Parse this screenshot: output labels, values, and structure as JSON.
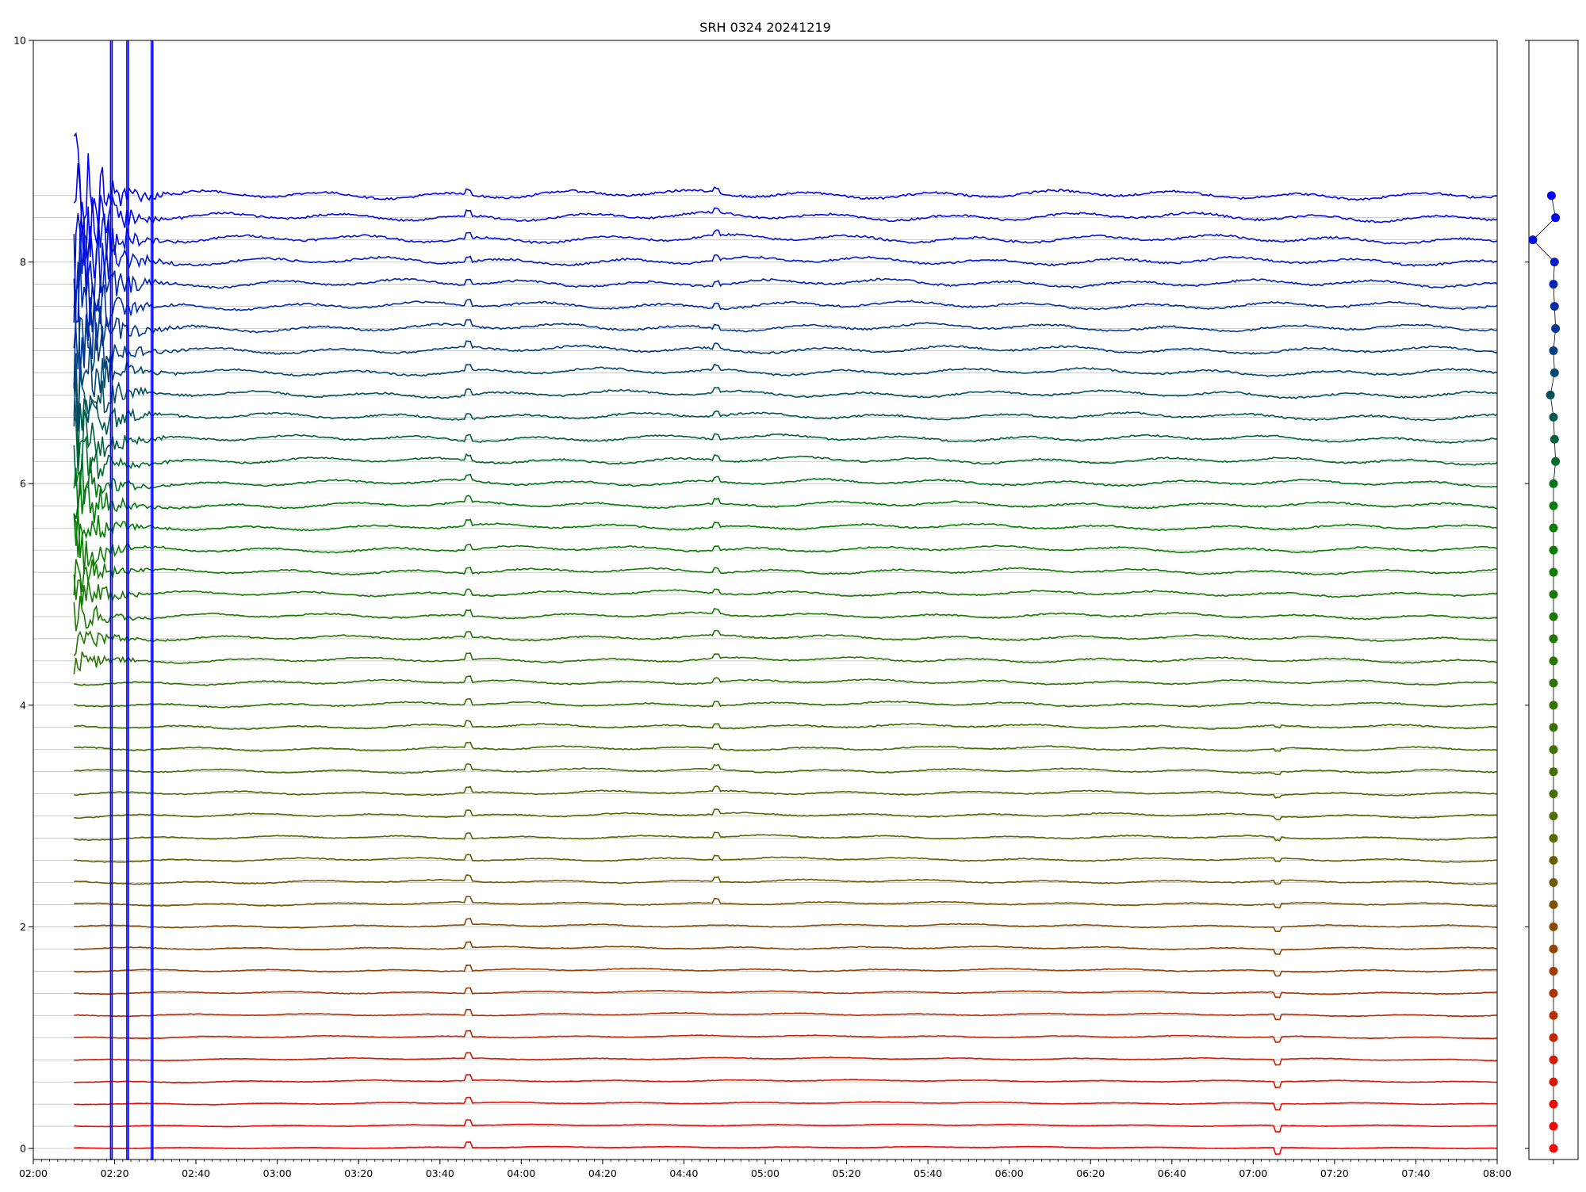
{
  "chart_data": [
    {
      "type": "line",
      "title": "SRH 0324 20241219",
      "xlabel": "",
      "ylabel": "",
      "x_unit": "time (HH:MM)",
      "xlim": [
        "02:00",
        "08:00"
      ],
      "ylim": [
        -0.1,
        10
      ],
      "x_ticks": [
        "02:00",
        "02:20",
        "02:40",
        "03:00",
        "03:20",
        "03:40",
        "04:00",
        "04:20",
        "04:40",
        "05:00",
        "05:20",
        "05:40",
        "06:00",
        "06:20",
        "06:40",
        "07:00",
        "07:20",
        "07:40",
        "08:00"
      ],
      "y_ticks": [
        0,
        2,
        4,
        6,
        8,
        10
      ],
      "y_tick_labels": [
        "0",
        "2",
        "4",
        "6",
        "8",
        "10"
      ],
      "grid": "horizontal lines at each series baseline",
      "series_count": 44,
      "series_baselines": [
        0.0,
        0.2,
        0.4,
        0.6,
        0.8,
        1.0,
        1.2,
        1.4,
        1.6,
        1.8,
        2.0,
        2.2,
        2.4,
        2.6,
        2.8,
        3.0,
        3.2,
        3.4,
        3.6,
        3.8,
        4.0,
        4.2,
        4.4,
        4.6,
        4.8,
        5.0,
        5.2,
        5.4,
        5.6,
        5.8,
        6.0,
        6.2,
        6.4,
        6.6,
        6.8,
        7.0,
        7.2,
        7.4,
        7.6,
        7.8,
        8.0,
        8.2,
        8.4,
        8.6
      ],
      "color_ramp": [
        "#ff0000",
        "#556b00",
        "#008000",
        "#0000ff"
      ],
      "data_start": "02:10",
      "data_end": "08:00",
      "common_features": [
        {
          "time": "03:47",
          "note": "small peak on most traces"
        },
        {
          "time": "04:48",
          "note": "small peak on upper and middle traces"
        },
        {
          "time": "07:06",
          "note": "dip on lower traces"
        }
      ],
      "saturated_spike_times": [
        "02:19",
        "02:23",
        "02:29"
      ]
    },
    {
      "type": "scatter",
      "title": "",
      "ylim": [
        -0.1,
        10
      ],
      "points_y": [
        0.0,
        0.2,
        0.4,
        0.6,
        0.8,
        1.0,
        1.2,
        1.4,
        1.6,
        1.8,
        2.0,
        2.2,
        2.4,
        2.6,
        2.8,
        3.0,
        3.2,
        3.4,
        3.6,
        3.8,
        4.0,
        4.2,
        4.4,
        4.6,
        4.8,
        5.0,
        5.2,
        5.4,
        5.6,
        5.8,
        6.0,
        6.2,
        6.4,
        6.6,
        6.8,
        7.0,
        7.2,
        7.4,
        7.6,
        7.8,
        8.0,
        8.2,
        8.4,
        8.6
      ],
      "points_x_offset": [
        0.0,
        0.0,
        0.0,
        0.0,
        0.0,
        0.0,
        0.0,
        0.0,
        0.0,
        0.0,
        0.0,
        0.0,
        0.0,
        0.0,
        0.0,
        0.0,
        0.0,
        0.0,
        0.0,
        0.0,
        0.0,
        0.0,
        0.0,
        0.0,
        0.0,
        0.0,
        0.0,
        0.0,
        0.0,
        0.0,
        0.0,
        0.1,
        0.05,
        0.0,
        -0.15,
        0.05,
        0.0,
        0.1,
        0.05,
        0.0,
        0.05,
        -1.0,
        0.1,
        -0.1
      ],
      "line": "connected"
    }
  ]
}
